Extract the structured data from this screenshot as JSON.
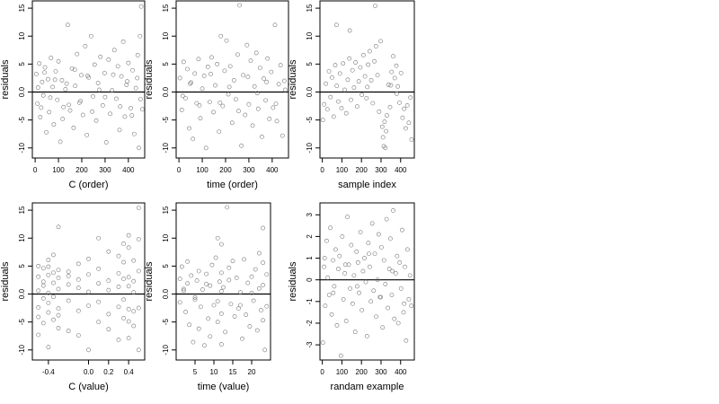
{
  "chart_data": [
    {
      "type": "scatter",
      "ylabel": "residuals",
      "xlabel": "C (order)",
      "xlim": [
        -12,
        470
      ],
      "ylim": [
        -11.8,
        16.3
      ],
      "xticks": [
        0,
        100,
        200,
        300,
        400
      ],
      "yticks": [
        -10,
        -5,
        0,
        5,
        10,
        15
      ],
      "yticklabels": [
        "-10",
        "-5",
        "0.0",
        "5",
        "10",
        "15"
      ],
      "hline": 0,
      "grid": false,
      "x": [
        5,
        10,
        18,
        22,
        30,
        35,
        42,
        48,
        55,
        60,
        68,
        75,
        80,
        88,
        95,
        100,
        108,
        115,
        122,
        130,
        140,
        150,
        158,
        165,
        172,
        180,
        190,
        198,
        205,
        215,
        222,
        230,
        240,
        248,
        255,
        262,
        270,
        280,
        290,
        298,
        305,
        315,
        322,
        330,
        340,
        348,
        355,
        362,
        370,
        378,
        385,
        392,
        400,
        410,
        418,
        425,
        432,
        440,
        445,
        450,
        455,
        460,
        12,
        26,
        40,
        65,
        85,
        118,
        135,
        145,
        170,
        195,
        225,
        245,
        275,
        300,
        335,
        365,
        395,
        415,
        438,
        452
      ],
      "y": [
        3.2,
        -2.1,
        5.1,
        -4.5,
        1.8,
        -0.6,
        4.4,
        -7.2,
        2.3,
        -3.6,
        6.1,
        0.9,
        -5.8,
        3.7,
        -1.4,
        5.5,
        -8.9,
        2.1,
        -2.7,
        0.5,
        12.0,
        -3.3,
        4.2,
        -6.4,
        1.1,
        6.8,
        -1.9,
        3.0,
        -4.1,
        8.2,
        -7.7,
        2.6,
        10.0,
        -0.8,
        4.9,
        -5.1,
        1.6,
        6.3,
        -2.4,
        3.4,
        -9.0,
        5.8,
        -3.9,
        0.3,
        7.5,
        -1.2,
        4.6,
        -6.8,
        2.8,
        9.0,
        -4.4,
        1.3,
        5.2,
        -2.9,
        3.9,
        -7.5,
        0.7,
        6.6,
        -10.0,
        10.0,
        15.3,
        -3.1,
        0.8,
        -2.8,
        3.5,
        -1.0,
        2.2,
        -4.8,
        1.5,
        -2.3,
        4.0,
        -1.6,
        2.9,
        -3.5,
        0.4,
        -0.9,
        3.1,
        -2.6,
        1.9,
        -4.2,
        2.5,
        -1.3
      ]
    },
    {
      "type": "scatter",
      "ylabel": "residuals",
      "xlabel": "time (order)",
      "xlim": [
        -12,
        470
      ],
      "ylim": [
        -11.8,
        16.3
      ],
      "xticks": [
        0,
        100,
        200,
        300,
        400
      ],
      "yticks": [
        -10,
        -5,
        0,
        5,
        10,
        15
      ],
      "yticklabels": [
        "-10",
        "-5",
        "0.0",
        "5",
        "10",
        "15"
      ],
      "hline": 0,
      "grid": false,
      "x": [
        4,
        12,
        20,
        28,
        36,
        44,
        52,
        60,
        68,
        76,
        84,
        92,
        100,
        108,
        116,
        124,
        132,
        140,
        148,
        156,
        164,
        172,
        180,
        188,
        196,
        204,
        212,
        220,
        228,
        236,
        244,
        252,
        260,
        268,
        276,
        284,
        292,
        300,
        308,
        316,
        324,
        332,
        340,
        348,
        356,
        364,
        372,
        380,
        388,
        396,
        404,
        412,
        420,
        428,
        436,
        444,
        452,
        16,
        48,
        88,
        136,
        176,
        216,
        256,
        296,
        336,
        376,
        416,
        456
      ],
      "y": [
        2.5,
        -3.2,
        5.4,
        -1.1,
        4.1,
        -6.5,
        1.7,
        -8.4,
        3.3,
        -2.0,
        5.9,
        -4.7,
        0.6,
        2.9,
        -10.0,
        4.5,
        -1.8,
        6.2,
        -3.6,
        1.2,
        5.0,
        -7.1,
        10.0,
        -2.5,
        3.8,
        9.2,
        -0.4,
        4.6,
        -5.5,
        2.1,
        -1.3,
        6.7,
        15.5,
        -9.6,
        3.0,
        -4.1,
        8.4,
        -2.2,
        5.6,
        -6.0,
        1.0,
        7.0,
        -3.0,
        4.3,
        -8.0,
        2.4,
        -1.5,
        6.0,
        -4.8,
        3.6,
        -2.8,
        12.0,
        -5.2,
        1.4,
        4.8,
        -7.8,
        2.0,
        -0.7,
        1.5,
        -2.4,
        3.2,
        -1.9,
        0.9,
        -3.4,
        2.7,
        -0.2,
        1.8,
        -2.1,
        0.4
      ]
    },
    {
      "type": "scatter",
      "ylabel": "residuals",
      "xlabel": "sample index",
      "xlim": [
        -12,
        470
      ],
      "ylim": [
        -11.8,
        16.3
      ],
      "xticks": [
        0,
        100,
        200,
        300,
        400
      ],
      "yticks": [
        -10,
        -5,
        0,
        5,
        10,
        15
      ],
      "yticklabels": [
        "-10",
        "-5",
        "0.0",
        "5",
        "10",
        "15"
      ],
      "hline": 0,
      "grid": false,
      "x": [
        3,
        10,
        18,
        26,
        34,
        42,
        50,
        58,
        66,
        74,
        82,
        90,
        98,
        106,
        114,
        122,
        130,
        138,
        146,
        154,
        162,
        170,
        178,
        186,
        194,
        202,
        210,
        218,
        226,
        234,
        242,
        250,
        258,
        266,
        274,
        282,
        290,
        298,
        306,
        310,
        314,
        318,
        322,
        326,
        330,
        338,
        346,
        354,
        362,
        370,
        378,
        386,
        394,
        402,
        410,
        418,
        426,
        434,
        442,
        450,
        456,
        72,
        140,
        230,
        270,
        350,
        380
      ],
      "y": [
        -5.0,
        -2.2,
        1.5,
        -3.1,
        3.7,
        -0.9,
        2.6,
        -4.4,
        4.8,
        1.1,
        -1.7,
        3.3,
        -2.9,
        5.1,
        0.4,
        -3.8,
        2.2,
        6.0,
        -1.4,
        3.9,
        0.8,
        5.3,
        -2.6,
        1.9,
        4.4,
        -0.5,
        6.6,
        2.8,
        -1.1,
        4.9,
        7.3,
        2.1,
        -2.0,
        5.5,
        8.2,
        3.0,
        -3.5,
        9.1,
        -6.2,
        -8.1,
        -9.7,
        -5.3,
        -10.0,
        -7.0,
        -4.2,
        1.3,
        -2.7,
        3.6,
        6.4,
        2.5,
        4.7,
        1.0,
        -1.9,
        3.4,
        -4.6,
        -3.0,
        -6.5,
        -2.4,
        -5.5,
        -1.0,
        -8.5,
        12.0,
        11.0,
        0.9,
        15.4,
        1.2,
        -0.3
      ]
    },
    {
      "type": "scatter",
      "ylabel": "residuals",
      "xlabel": "C (value)",
      "xlim": [
        -0.56,
        0.56
      ],
      "ylim": [
        -11.8,
        16.3
      ],
      "xticks": [
        -0.4,
        0.0,
        0.2,
        0.4
      ],
      "xticklabels": [
        "-0.4",
        "0.0",
        "0.2",
        "0.4"
      ],
      "yticks": [
        -10,
        -5,
        0,
        5,
        10,
        15
      ],
      "yticklabels": [
        "-10",
        "-5",
        "0.0",
        "5",
        "10",
        "15"
      ],
      "hline": 0,
      "grid": false,
      "x": [
        -0.5,
        -0.5,
        -0.5,
        -0.5,
        -0.5,
        -0.5,
        -0.45,
        -0.45,
        -0.45,
        -0.45,
        -0.45,
        -0.4,
        -0.4,
        -0.4,
        -0.4,
        -0.4,
        -0.4,
        -0.4,
        -0.35,
        -0.35,
        -0.35,
        -0.35,
        -0.35,
        -0.3,
        -0.3,
        -0.3,
        -0.3,
        -0.3,
        -0.3,
        -0.3,
        -0.2,
        -0.2,
        -0.2,
        -0.2,
        -0.2,
        -0.1,
        -0.1,
        -0.1,
        -0.1,
        -0.1,
        0.0,
        0.0,
        0.0,
        0.0,
        0.0,
        0.1,
        0.1,
        0.1,
        0.1,
        0.1,
        0.2,
        0.2,
        0.2,
        0.2,
        0.2,
        0.3,
        0.3,
        0.3,
        0.3,
        0.3,
        0.35,
        0.35,
        0.35,
        0.35,
        0.35,
        0.4,
        0.4,
        0.4,
        0.4,
        0.4,
        0.4,
        0.4,
        0.45,
        0.45,
        0.45,
        0.45,
        0.45,
        0.5,
        0.5,
        0.5,
        0.5,
        0.5
      ],
      "y": [
        3.1,
        -2.4,
        5.0,
        -7.3,
        0.6,
        -4.1,
        2.2,
        -0.8,
        4.6,
        -5.2,
        1.5,
        6.1,
        -3.3,
        3.4,
        -9.5,
        0.2,
        4.9,
        -1.6,
        2.0,
        -4.6,
        7.0,
        -0.5,
        3.8,
        12.0,
        -2.6,
        2.9,
        -6.1,
        0.9,
        4.3,
        -3.8,
        1.7,
        -6.6,
        4.0,
        -1.2,
        3.2,
        5.4,
        -3.0,
        1.1,
        -7.4,
        2.6,
        6.3,
        -2.1,
        0.4,
        -10.0,
        3.5,
        4.5,
        -5.0,
        1.9,
        10.0,
        -1.4,
        7.6,
        -3.6,
        2.4,
        -6.3,
        0.7,
        6.8,
        -2.3,
        3.7,
        -8.2,
        1.3,
        9.0,
        -4.3,
        2.7,
        -1.0,
        5.7,
        8.3,
        -4.9,
        3.0,
        -2.7,
        1.4,
        -7.9,
        10.5,
        6.0,
        -3.1,
        2.3,
        -5.7,
        0.3,
        9.8,
        -2.5,
        4.1,
        -10.0,
        15.4
      ]
    },
    {
      "type": "scatter",
      "ylabel": "residuals",
      "xlabel": "time (value)",
      "xlim": [
        0,
        25
      ],
      "ylim": [
        -11.8,
        16.3
      ],
      "xticks": [
        5,
        10,
        15,
        20
      ],
      "yticks": [
        -10,
        -5,
        0,
        5,
        10,
        15
      ],
      "yticklabels": [
        "-10",
        "-5",
        "0.0",
        "5",
        "10",
        "15"
      ],
      "hline": 0,
      "grid": false,
      "x": [
        1,
        1,
        1.5,
        2,
        2.5,
        3,
        3,
        3.5,
        4,
        4.5,
        5,
        5.5,
        6,
        6,
        6.5,
        7,
        7.5,
        8,
        8.5,
        9,
        9,
        9.5,
        10,
        10.5,
        11,
        11,
        11.5,
        12,
        12,
        12,
        12,
        12,
        12.5,
        13,
        13.5,
        14,
        14.5,
        15,
        15.5,
        16,
        16.5,
        17,
        17.5,
        18,
        18.5,
        19,
        19.5,
        20,
        20.5,
        21,
        21.5,
        22,
        22.5,
        23,
        23,
        23,
        23,
        23.5,
        24,
        24,
        2,
        5,
        8,
        11,
        14,
        17,
        20,
        22
      ],
      "y": [
        2.7,
        -1.5,
        4.9,
        0.6,
        -3.2,
        5.8,
        1.9,
        -5.5,
        3.3,
        -8.6,
        -1.0,
        2.4,
        -6.2,
        4.1,
        -2.3,
        0.8,
        -9.2,
        3.6,
        -4.4,
        1.5,
        -7.6,
        5.2,
        -2.0,
        6.5,
        10.0,
        -5.0,
        2.2,
        3.8,
        -3.5,
        0.5,
        8.9,
        -9.0,
        1.2,
        -6.8,
        15.5,
        4.7,
        -1.8,
        5.9,
        -4.0,
        2.9,
        -2.6,
        0.3,
        -8.0,
        6.2,
        -3.7,
        2.0,
        -5.8,
        3.1,
        -1.2,
        4.4,
        -6.5,
        7.3,
        -2.9,
        1.6,
        -4.7,
        5.6,
        11.8,
        -10.0,
        3.5,
        -2.2,
        0.9,
        -0.6,
        1.8,
        -1.3,
        2.5,
        -2.0,
        0.2,
        1.0
      ]
    },
    {
      "type": "scatter",
      "ylabel": "residuals",
      "xlabel": "randam example",
      "xlim": [
        -12,
        470
      ],
      "ylim": [
        -3.7,
        3.55
      ],
      "xticks": [
        0,
        100,
        200,
        300,
        400
      ],
      "yticks": [
        -3,
        -2,
        -1,
        0,
        1,
        2,
        3
      ],
      "hline": 0,
      "grid": false,
      "x": [
        3,
        9,
        15,
        22,
        28,
        35,
        41,
        48,
        55,
        61,
        68,
        75,
        82,
        88,
        95,
        102,
        108,
        115,
        122,
        128,
        135,
        142,
        148,
        155,
        162,
        168,
        175,
        182,
        188,
        195,
        202,
        208,
        215,
        222,
        228,
        235,
        242,
        248,
        255,
        262,
        268,
        275,
        282,
        288,
        295,
        302,
        308,
        315,
        322,
        328,
        335,
        342,
        348,
        355,
        362,
        368,
        375,
        382,
        388,
        395,
        402,
        408,
        415,
        422,
        428,
        435,
        442,
        448,
        455,
        12,
        56,
        118,
        178,
        238,
        298,
        358,
        418
      ],
      "y": [
        -2.9,
        0.6,
        -1.2,
        1.8,
        0.1,
        -0.7,
        2.4,
        -1.6,
        0.9,
        -0.3,
        1.4,
        -2.1,
        0.5,
        1.1,
        -3.5,
        2.0,
        -0.9,
        0.3,
        -1.9,
        2.9,
        0.7,
        -0.4,
        1.6,
        -1.1,
        0.2,
        -2.4,
        1.3,
        0.8,
        -0.6,
        2.2,
        -1.4,
        0.4,
        1.0,
        -0.1,
        -2.6,
        1.7,
        0.6,
        -1.0,
        2.6,
        -0.5,
        1.2,
        -1.7,
        0.0,
        2.1,
        -0.8,
        1.5,
        -2.2,
        0.9,
        -0.2,
        2.8,
        -1.3,
        0.5,
        1.9,
        -0.7,
        3.2,
        -1.8,
        0.3,
        1.1,
        -2.0,
        0.8,
        -0.4,
        2.3,
        -1.5,
        0.6,
        -2.8,
        1.4,
        -0.9,
        0.2,
        -1.2,
        1.0,
        -0.6,
        0.7,
        -0.3,
        1.2,
        -0.8,
        0.4,
        -1.1
      ]
    }
  ]
}
